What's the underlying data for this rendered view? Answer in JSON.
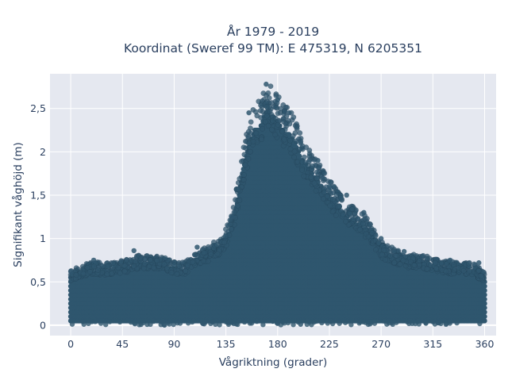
{
  "chart_data": {
    "type": "scatter",
    "title_line1": "År 1979 - 2019",
    "title_line2": "Koordinat (Sweref 99 TM): E 475319, N 6205351",
    "xlabel": "Vågriktning (grader)",
    "ylabel": "Signifikant våghöjd (m)",
    "xlim": [
      -18,
      370
    ],
    "ylim": [
      -0.12,
      2.9
    ],
    "x_ticks": [
      0,
      45,
      90,
      135,
      180,
      225,
      270,
      315,
      360
    ],
    "x_tick_labels": [
      "0",
      "45",
      "90",
      "135",
      "180",
      "225",
      "270",
      "315",
      "360"
    ],
    "y_ticks": [
      0,
      0.5,
      1,
      1.5,
      2,
      2.5
    ],
    "y_tick_labels": [
      "0",
      "0,5",
      "1",
      "1,5",
      "2",
      "2,5"
    ],
    "grid": true,
    "legend": "none",
    "colors": {
      "marker": "#2f566e",
      "plot_background": "#e5e8f0",
      "grid": "#ffffff",
      "text": "#2a3f5f"
    },
    "upper_envelope": {
      "x": [
        0,
        10,
        20,
        30,
        40,
        50,
        60,
        70,
        80,
        90,
        100,
        110,
        120,
        130,
        135,
        140,
        145,
        150,
        155,
        160,
        165,
        170,
        175,
        180,
        185,
        190,
        195,
        200,
        205,
        210,
        215,
        220,
        225,
        230,
        235,
        240,
        245,
        250,
        255,
        260,
        265,
        270,
        275,
        280,
        285,
        290,
        300,
        310,
        320,
        330,
        340,
        350,
        360
      ],
      "y": [
        0.62,
        0.68,
        0.72,
        0.7,
        0.72,
        0.75,
        0.8,
        0.78,
        0.78,
        0.72,
        0.72,
        0.85,
        0.9,
        1.0,
        1.1,
        1.25,
        1.6,
        2.0,
        2.3,
        2.5,
        2.55,
        2.75,
        2.7,
        2.6,
        2.5,
        2.45,
        2.35,
        2.15,
        2.05,
        1.95,
        1.85,
        1.75,
        1.65,
        1.55,
        1.48,
        1.4,
        1.35,
        1.3,
        1.25,
        1.2,
        1.05,
        0.95,
        0.9,
        0.88,
        0.85,
        0.82,
        0.8,
        0.78,
        0.75,
        0.72,
        0.72,
        0.7,
        0.6
      ]
    },
    "sample_points": [
      {
        "x": 0,
        "y": 0.62
      },
      {
        "x": 20,
        "y": 0.75
      },
      {
        "x": 55,
        "y": 0.86
      },
      {
        "x": 110,
        "y": 0.9
      },
      {
        "x": 140,
        "y": 1.25
      },
      {
        "x": 155,
        "y": 2.45
      },
      {
        "x": 170,
        "y": 2.78
      },
      {
        "x": 180,
        "y": 2.6
      },
      {
        "x": 190,
        "y": 2.45
      },
      {
        "x": 200,
        "y": 2.1
      },
      {
        "x": 215,
        "y": 1.9
      },
      {
        "x": 225,
        "y": 1.6
      },
      {
        "x": 240,
        "y": 1.5
      },
      {
        "x": 255,
        "y": 1.3
      },
      {
        "x": 270,
        "y": 1.0
      },
      {
        "x": 290,
        "y": 0.85
      },
      {
        "x": 330,
        "y": 0.75
      },
      {
        "x": 355,
        "y": 0.72
      },
      {
        "x": 180,
        "y": 0.02
      },
      {
        "x": 200,
        "y": 0.01
      }
    ],
    "baseline_y": 0.05
  }
}
